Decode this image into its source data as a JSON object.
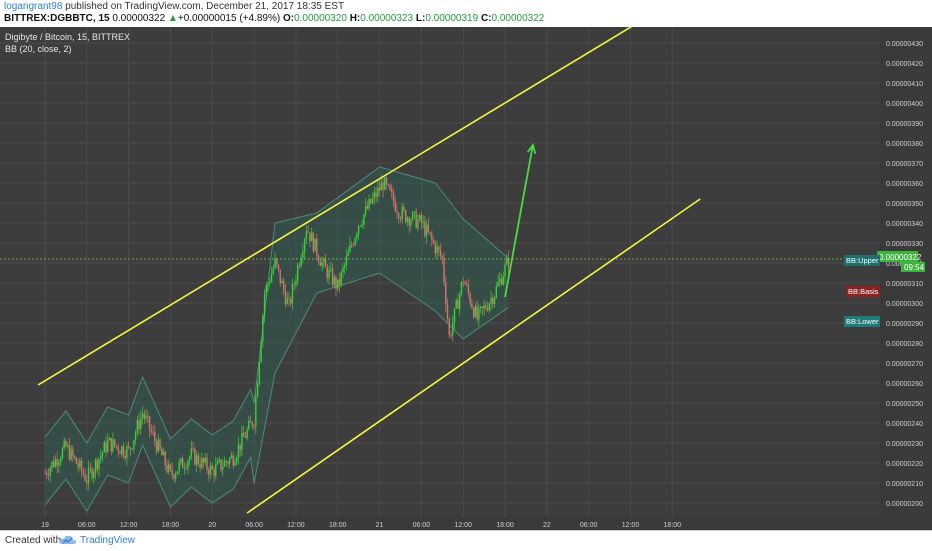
{
  "header": {
    "author": "logangrant98",
    "published_text": " published on TradingView.com, December 21, 2017 18:35 EST",
    "symbol": "BITTREX:DGBBTC, 15",
    "last": "0.00000322",
    "change_arrow": "▲",
    "change": "+0.00000015 (+4.89%)",
    "o_label": "O:",
    "o": "0.00000320",
    "h_label": "H:",
    "h": "0.00000323",
    "l_label": "L:",
    "l": "0.00000319",
    "c_label": "C:",
    "c": "0.00000322"
  },
  "chart": {
    "legend_title": "Digibyte / Bitcoin, 15, BITTREX",
    "indicator": "BB (20, close, 2)",
    "price_tag": "0.00000322",
    "time_tag": "09:54",
    "bb_upper": "BB:Upper",
    "bb_basis": "BB:Basis",
    "bb_lower": "BB:Lower"
  },
  "footer": {
    "created_with": "Created with",
    "brand": "TradingView"
  },
  "colors": {
    "background": "#3d3d3d",
    "grid": "#4a4a4a",
    "up": "#33d633",
    "down": "#d9736b",
    "channel": "#f5f542",
    "arrow": "#44dd44",
    "band_fill": "#2f5f52",
    "band_line": "#4c8c7a",
    "price_line": "#7ad64a",
    "upper_tag": "#1f6f6f",
    "basis_tag": "#8b2222",
    "lower_tag": "#1f7a7a"
  },
  "chart_data": {
    "type": "candlestick",
    "title": "Digibyte / Bitcoin, 15, BITTREX",
    "y_ticks": [
      "0.00000430",
      "0.00000420",
      "0.00000410",
      "0.00000400",
      "0.00000390",
      "0.00000380",
      "0.00000370",
      "0.00000360",
      "0.00000350",
      "0.00000340",
      "0.00000330",
      "0.00000320",
      "0.00000310",
      "0.00000300",
      "0.00000290",
      "0.00000280",
      "0.00000270",
      "0.00000260",
      "0.00000250",
      "0.00000240",
      "0.00000230",
      "0.00000220",
      "0.00000210",
      "0.00000200"
    ],
    "x_ticks": [
      "19",
      "06:00",
      "12:00",
      "18:00",
      "20",
      "06:00",
      "12:00",
      "18:00",
      "21",
      "06:00",
      "12:00",
      "18:00",
      "22",
      "06:00",
      "12:00",
      "18:00"
    ],
    "ylim": [
      1.96e-06,
      4.36e-06
    ],
    "grid": true,
    "series": [
      {
        "name": "Price (approx. path)",
        "points": [
          [
            "19 00:00",
            2.15e-06
          ],
          [
            "19 03:00",
            2.28e-06
          ],
          [
            "19 06:00",
            2.12e-06
          ],
          [
            "19 09:00",
            2.3e-06
          ],
          [
            "19 12:00",
            2.26e-06
          ],
          [
            "19 14:00",
            2.45e-06
          ],
          [
            "19 18:00",
            2.14e-06
          ],
          [
            "19 21:00",
            2.24e-06
          ],
          [
            "20 00:00",
            2.16e-06
          ],
          [
            "20 03:00",
            2.23e-06
          ],
          [
            "20 06:00",
            2.42e-06
          ],
          [
            "20 07:30",
            3.05e-06
          ],
          [
            "20 09:00",
            3.2e-06
          ],
          [
            "20 11:00",
            2.98e-06
          ],
          [
            "20 13:30",
            3.38e-06
          ],
          [
            "20 16:00",
            3.18e-06
          ],
          [
            "20 18:00",
            3.08e-06
          ],
          [
            "20 21:00",
            3.4e-06
          ],
          [
            "21 00:30",
            3.6e-06
          ],
          [
            "21 03:00",
            3.45e-06
          ],
          [
            "21 06:00",
            3.4e-06
          ],
          [
            "21 09:00",
            3.22e-06
          ],
          [
            "21 10:00",
            2.83e-06
          ],
          [
            "21 12:00",
            3.12e-06
          ],
          [
            "21 14:00",
            2.92e-06
          ],
          [
            "21 16:30",
            3.05e-06
          ],
          [
            "21 18:35",
            3.22e-06
          ]
        ]
      },
      {
        "name": "BB Upper (approx.)",
        "points": [
          [
            "20 06:00",
            2.5e-06
          ],
          [
            "20 09:00",
            3.4e-06
          ],
          [
            "20 15:00",
            3.45e-06
          ],
          [
            "21 00:00",
            3.68e-06
          ],
          [
            "21 08:00",
            3.6e-06
          ],
          [
            "21 12:00",
            3.42e-06
          ],
          [
            "21 18:35",
            3.22e-06
          ]
        ]
      },
      {
        "name": "BB Lower (approx.)",
        "points": [
          [
            "20 06:00",
            2.1e-06
          ],
          [
            "20 09:00",
            2.65e-06
          ],
          [
            "20 15:00",
            3.05e-06
          ],
          [
            "21 00:00",
            3.15e-06
          ],
          [
            "21 08:00",
            2.96e-06
          ],
          [
            "21 12:00",
            2.82e-06
          ],
          [
            "21 18:35",
            2.98e-06
          ]
        ]
      }
    ],
    "annotations": {
      "channel_upper": [
        [
          "18 23:00",
          2.59e-06
        ],
        [
          "22 13:00",
          4.4e-06
        ]
      ],
      "channel_lower": [
        [
          "20 05:00",
          1.95e-06
        ],
        [
          "22 22:00",
          3.52e-06
        ]
      ],
      "arrow": [
        [
          "21 18:00",
          3.03e-06
        ],
        [
          "21 22:00",
          3.79e-06
        ]
      ]
    }
  }
}
